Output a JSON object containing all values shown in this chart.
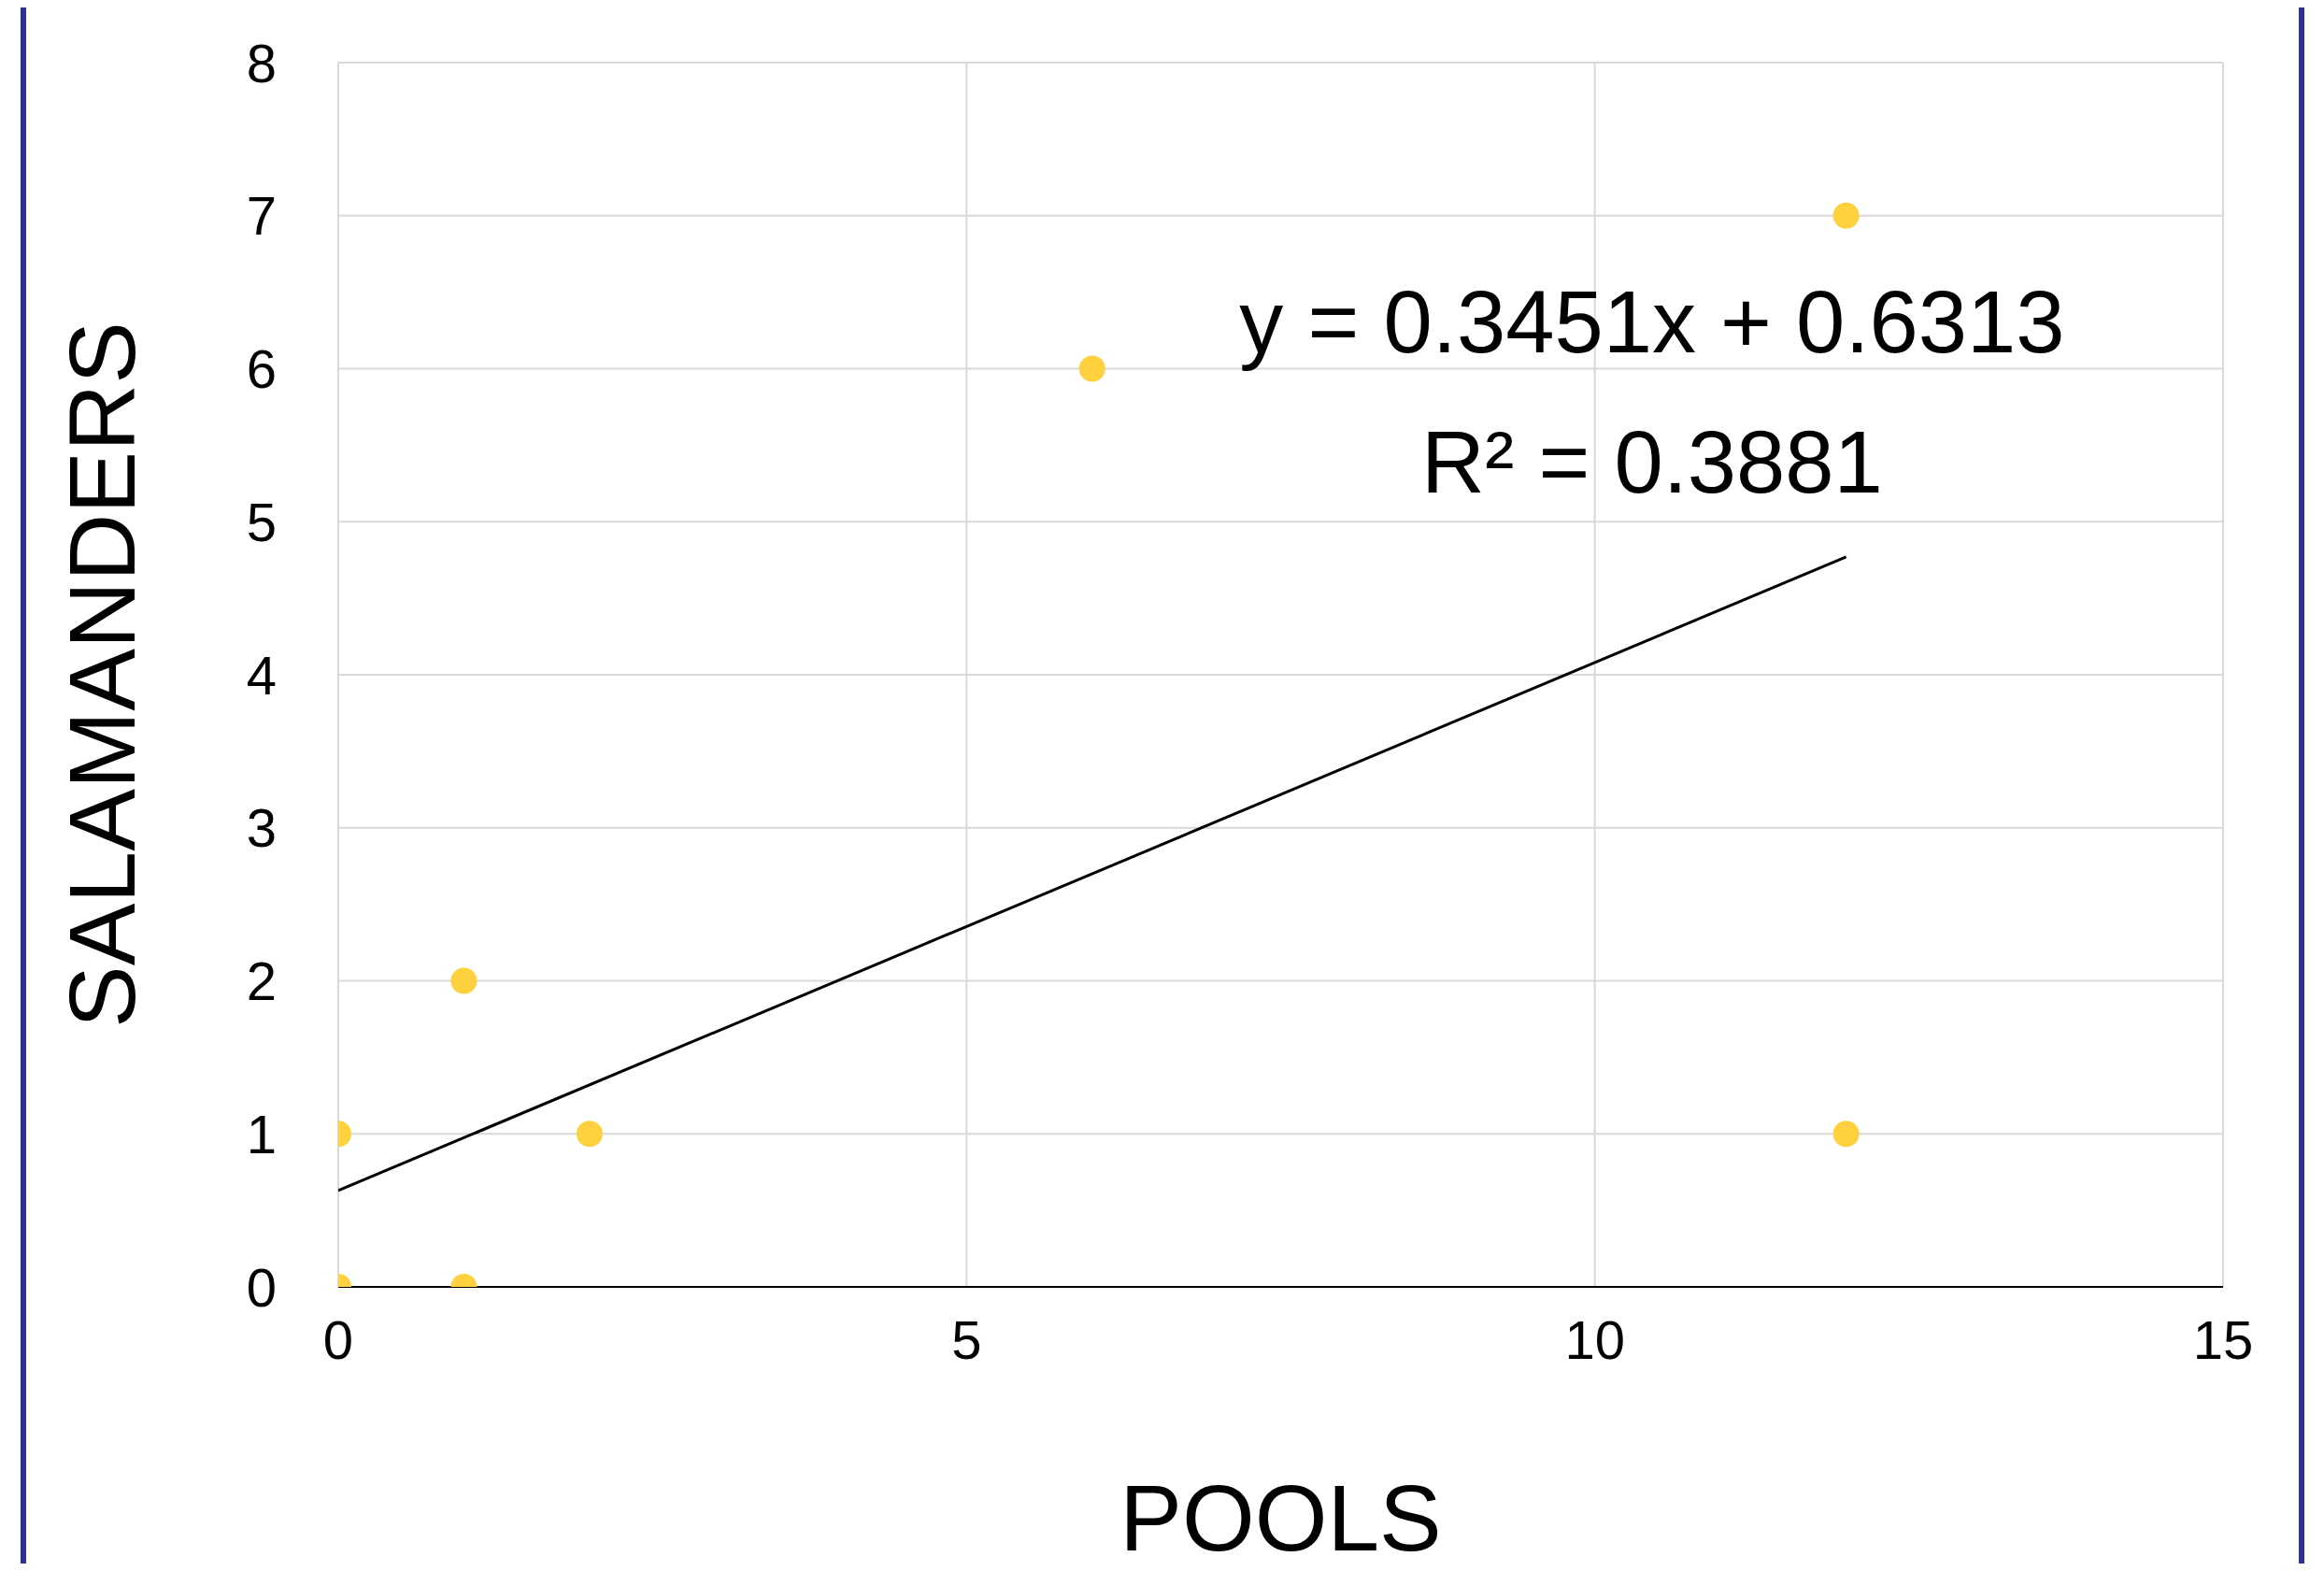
{
  "chart_data": {
    "type": "scatter",
    "xlabel": "POOLS",
    "ylabel": "SALAMANDERS",
    "xlim": [
      0,
      15
    ],
    "xticks": [
      0,
      5,
      10,
      15
    ],
    "ylim": [
      0,
      8
    ],
    "yticks": [
      0,
      1,
      2,
      3,
      4,
      5,
      6,
      7,
      8
    ],
    "grid": true,
    "series": [
      {
        "marker": "circle",
        "color": "#ffd13f",
        "x": [
          0,
          0,
          1,
          1,
          2,
          6,
          12,
          12
        ],
        "values": [
          1,
          0,
          2,
          0,
          1,
          6,
          7,
          1
        ]
      },
      {
        "type": "line",
        "color": "#000000",
        "line_style": "solid",
        "x": [
          0,
          12
        ],
        "values": [
          0.63,
          4.77
        ]
      }
    ],
    "annotations": [
      "y = 0.3451x + 0.6313",
      "R² = 0.3881"
    ]
  }
}
